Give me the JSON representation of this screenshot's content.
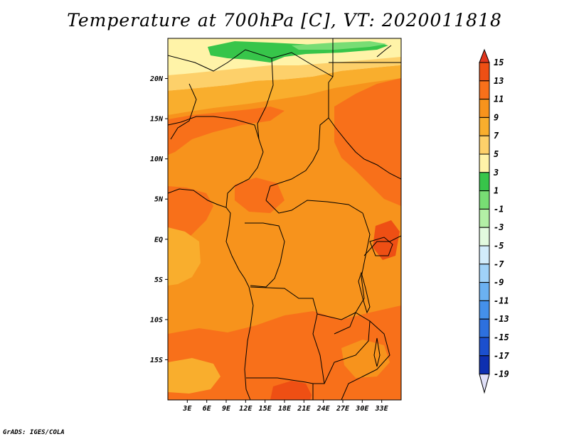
{
  "title": "Temperature at 700hPa [C], VT: 2020011818",
  "credit": "GrADS: IGES/COLA",
  "map": {
    "lon_range": [
      0,
      36
    ],
    "lat_range": [
      -20,
      25
    ],
    "lat_ticks": [
      {
        "value": 20,
        "label": "20N"
      },
      {
        "value": 15,
        "label": "15N"
      },
      {
        "value": 10,
        "label": "10N"
      },
      {
        "value": 5,
        "label": "5N"
      },
      {
        "value": 0,
        "label": "EQ"
      },
      {
        "value": -5,
        "label": "5S"
      },
      {
        "value": -10,
        "label": "10S"
      },
      {
        "value": -15,
        "label": "15S"
      }
    ],
    "lon_ticks": [
      {
        "value": 3,
        "label": "3E"
      },
      {
        "value": 6,
        "label": "6E"
      },
      {
        "value": 9,
        "label": "9E"
      },
      {
        "value": 12,
        "label": "12E"
      },
      {
        "value": 15,
        "label": "15E"
      },
      {
        "value": 18,
        "label": "18E"
      },
      {
        "value": 21,
        "label": "21E"
      },
      {
        "value": 24,
        "label": "24E"
      },
      {
        "value": 27,
        "label": "27E"
      },
      {
        "value": 30,
        "label": "30E"
      },
      {
        "value": 33,
        "label": "33E"
      }
    ]
  },
  "colorbar": {
    "labels": [
      "15",
      "13",
      "11",
      "9",
      "7",
      "5",
      "3",
      "1",
      "-1",
      "-3",
      "-5",
      "-7",
      "-9",
      "-11",
      "-13",
      "-15",
      "-17",
      "-19"
    ],
    "colors": [
      "#e0361d",
      "#ee4f14",
      "#f8701a",
      "#f7931c",
      "#f9ae2d",
      "#fdd06a",
      "#fff3a8",
      "#37c54a",
      "#78dd74",
      "#b3f0a6",
      "#e2fadf",
      "#d2ecfb",
      "#a0d2f8",
      "#6bb1f1",
      "#4490ea",
      "#2d70de",
      "#1b4fce",
      "#0e2fb0",
      "#0b1b78",
      "#e0e0f8"
    ]
  }
}
